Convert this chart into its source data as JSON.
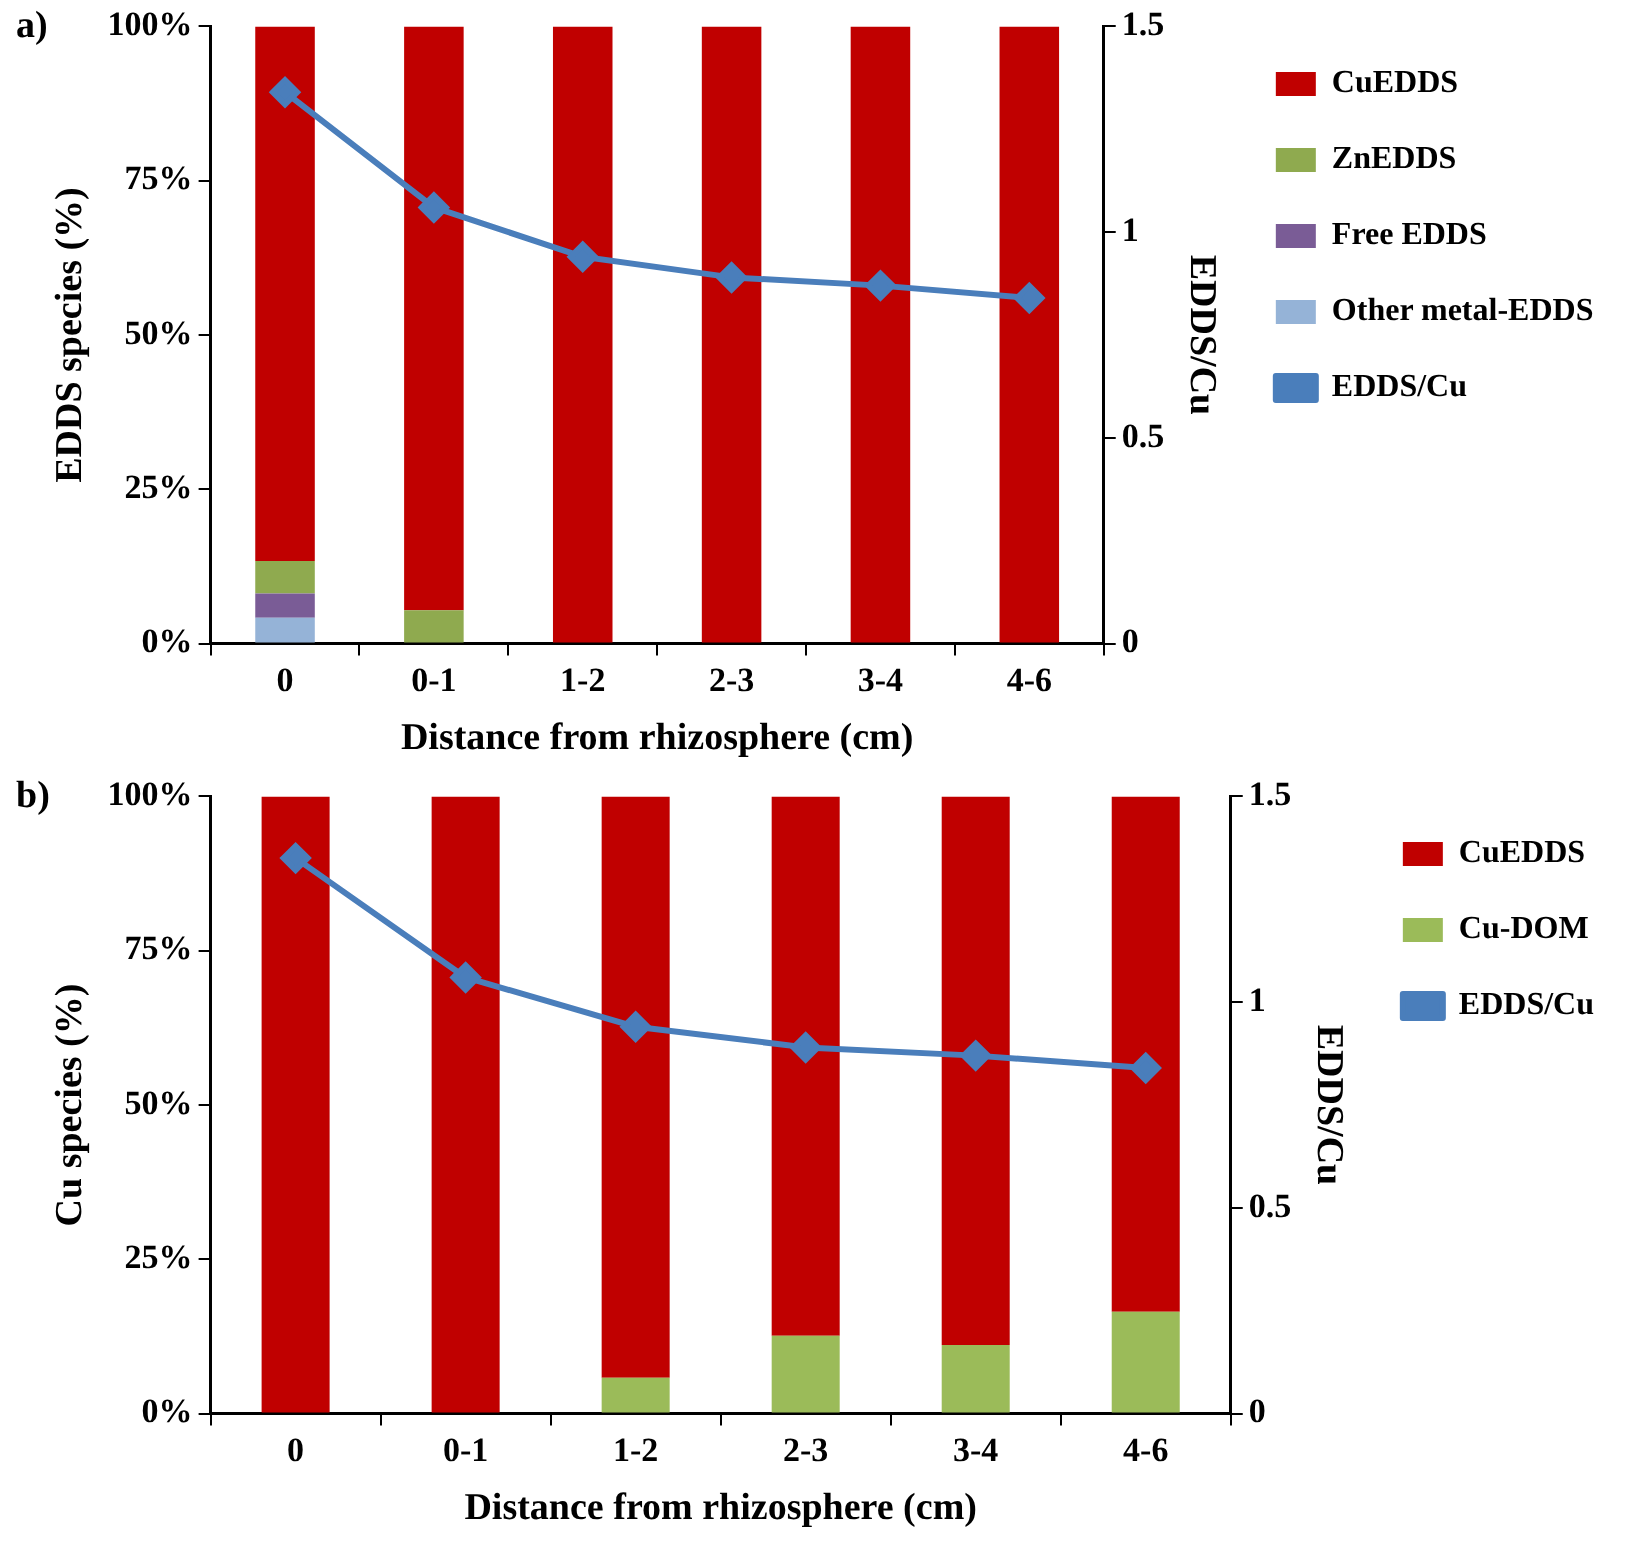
{
  "chart_data": [
    {
      "type": "bar",
      "stacked": true,
      "annotations": [
        "a)"
      ],
      "xlabel": "Distance from rhizosphere (cm)",
      "ylabel": "EDDS species (%)",
      "y2label": "EDDS/Cu",
      "categories": [
        "0",
        "0-1",
        "1-2",
        "2-3",
        "3-4",
        "4-6"
      ],
      "series": [
        {
          "name": "Other metal-EDDS",
          "color": "#95b3d7",
          "values": [
            4.2,
            0,
            0,
            0,
            0,
            0
          ]
        },
        {
          "name": "Free EDDS",
          "color": "#7a5c96",
          "values": [
            3.9,
            0,
            0,
            0,
            0,
            0
          ]
        },
        {
          "name": "ZnEDDS",
          "color": "#8faa4f",
          "values": [
            5.3,
            5.4,
            0,
            0,
            0,
            0
          ]
        },
        {
          "name": "CuEDDS",
          "color": "#c00000",
          "values": [
            86.6,
            94.6,
            100,
            100,
            100,
            100
          ]
        },
        {
          "name": "EDDS/Cu",
          "type": "line",
          "axis": "y2",
          "color": "#4a7ebb",
          "marker": "diamond",
          "values": [
            1.34,
            1.06,
            0.94,
            0.89,
            0.87,
            0.84
          ]
        }
      ],
      "ylim": [
        0,
        100
      ],
      "yticks": [
        {
          "value": 0,
          "label": "0%"
        },
        {
          "value": 25,
          "label": "25%"
        },
        {
          "value": 50,
          "label": "50%"
        },
        {
          "value": 75,
          "label": "75%"
        },
        {
          "value": 100,
          "label": "100%"
        }
      ],
      "y2lim": [
        0,
        1.5
      ],
      "y2ticks": [
        0,
        0.5,
        1,
        1.5
      ],
      "grid": false,
      "legend": "right"
    },
    {
      "type": "bar",
      "stacked": true,
      "annotations": [
        "b)"
      ],
      "xlabel": "Distance from rhizosphere (cm)",
      "ylabel": "Cu species (%)",
      "y2label": "EDDS/Cu",
      "categories": [
        "0",
        "0-1",
        "1-2",
        "2-3",
        "3-4",
        "4-6"
      ],
      "series": [
        {
          "name": "Cu-DOM",
          "color": "#9bbb59",
          "values": [
            0,
            0,
            5.8,
            12.6,
            11.1,
            16.5
          ]
        },
        {
          "name": "CuEDDS",
          "color": "#c00000",
          "values": [
            100,
            100,
            94.2,
            87.4,
            88.9,
            83.5
          ]
        },
        {
          "name": "EDDS/Cu",
          "type": "line",
          "axis": "y2",
          "color": "#4a7ebb",
          "marker": "diamond",
          "values": [
            1.35,
            1.06,
            0.94,
            0.89,
            0.87,
            0.84
          ]
        }
      ],
      "ylim": [
        0,
        100
      ],
      "yticks": [
        {
          "value": 0,
          "label": "0%"
        },
        {
          "value": 25,
          "label": "25%"
        },
        {
          "value": 50,
          "label": "50%"
        },
        {
          "value": 75,
          "label": "75%"
        },
        {
          "value": 100,
          "label": "100%"
        }
      ],
      "y2lim": [
        0,
        1.5
      ],
      "y2ticks": [
        0,
        0.5,
        1,
        1.5
      ],
      "grid": false,
      "legend": "right"
    }
  ]
}
